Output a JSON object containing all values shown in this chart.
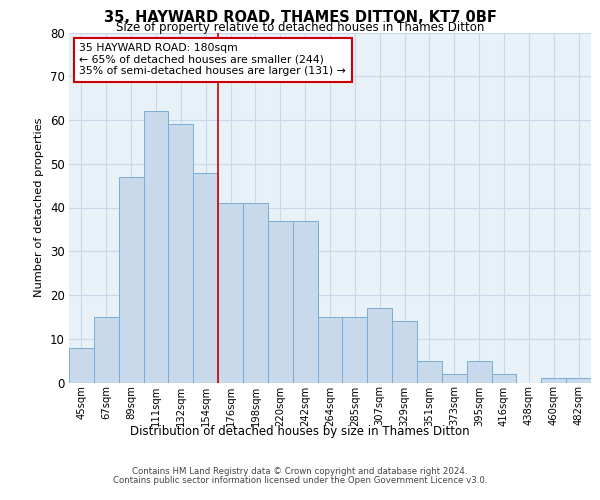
{
  "title_line1": "35, HAYWARD ROAD, THAMES DITTON, KT7 0BF",
  "title_line2": "Size of property relative to detached houses in Thames Ditton",
  "xlabel": "Distribution of detached houses by size in Thames Ditton",
  "ylabel": "Number of detached properties",
  "categories": [
    "45sqm",
    "67sqm",
    "89sqm",
    "111sqm",
    "132sqm",
    "154sqm",
    "176sqm",
    "198sqm",
    "220sqm",
    "242sqm",
    "264sqm",
    "285sqm",
    "307sqm",
    "329sqm",
    "351sqm",
    "373sqm",
    "395sqm",
    "416sqm",
    "438sqm",
    "460sqm",
    "482sqm"
  ],
  "values": [
    8,
    15,
    47,
    62,
    59,
    48,
    41,
    41,
    37,
    37,
    15,
    15,
    17,
    14,
    5,
    2,
    5,
    2,
    0,
    1,
    1
  ],
  "bar_color": "#c9d9ec",
  "bar_edge_color": "#7aadd4",
  "grid_color": "#c8d8e8",
  "background_color": "#e8f0f8",
  "vline_color": "#cc0000",
  "annotation_text": "35 HAYWARD ROAD: 180sqm\n← 65% of detached houses are smaller (244)\n35% of semi-detached houses are larger (131) →",
  "annotation_box_color": "#ffffff",
  "annotation_box_edge": "#cc0000",
  "ylim": [
    0,
    80
  ],
  "yticks": [
    0,
    10,
    20,
    30,
    40,
    50,
    60,
    70,
    80
  ],
  "footer_line1": "Contains HM Land Registry data © Crown copyright and database right 2024.",
  "footer_line2": "Contains public sector information licensed under the Open Government Licence v3.0."
}
